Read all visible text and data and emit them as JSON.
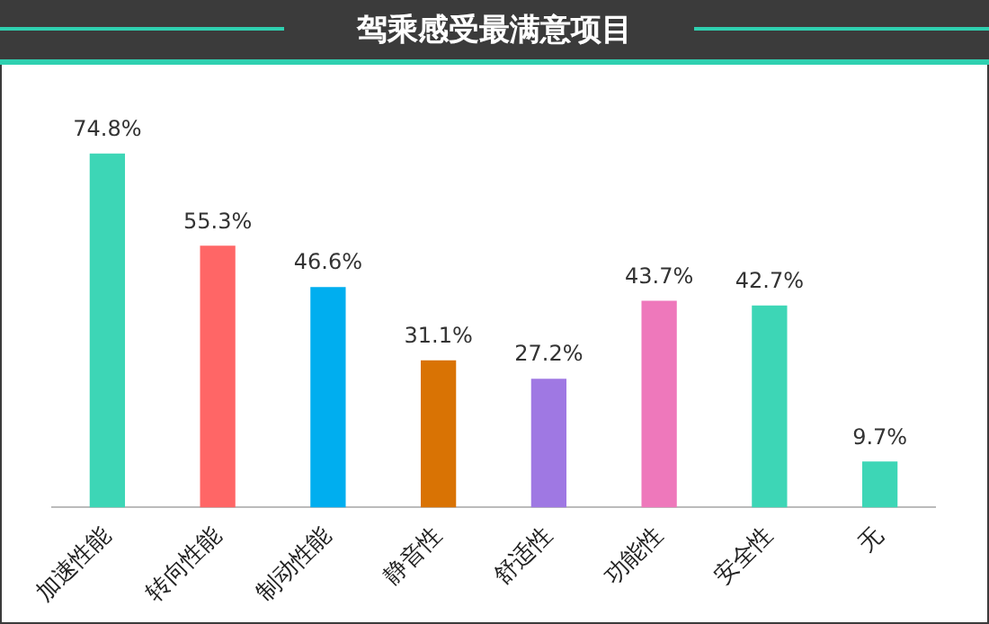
{
  "chart_data": {
    "type": "bar",
    "title": "驾乘感受最满意项目",
    "categories": [
      "加速性能",
      "转向性能",
      "制动性能",
      "静音性",
      "舒适性",
      "功能性",
      "安全性",
      "无"
    ],
    "values": [
      74.8,
      55.3,
      46.6,
      31.1,
      27.2,
      43.7,
      42.7,
      9.7
    ],
    "colors": [
      "#3dd6b6",
      "#ff6666",
      "#00aeef",
      "#d97304",
      "#9f78e3",
      "#ee78bb",
      "#3dd6b6",
      "#3dd6b6"
    ],
    "value_labels": [
      "74.8%",
      "55.3%",
      "46.6%",
      "31.1%",
      "27.2%",
      "43.7%",
      "42.7%",
      "9.7%"
    ],
    "grid": false,
    "legend": false
  }
}
